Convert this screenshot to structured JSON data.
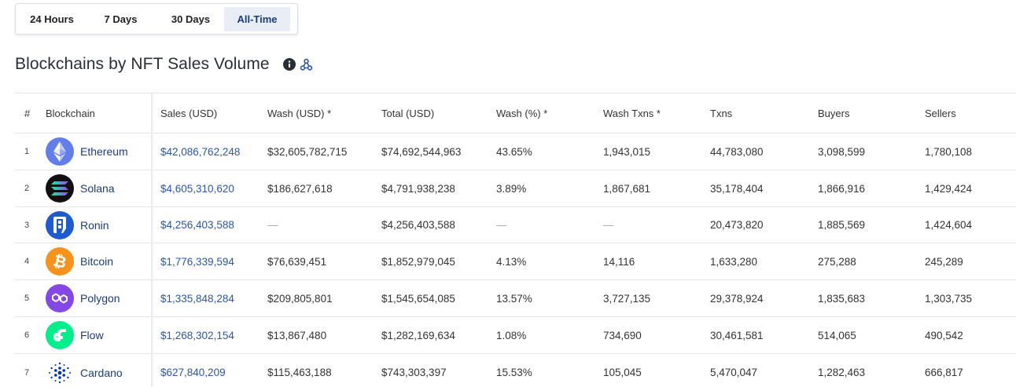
{
  "time_tabs": [
    {
      "label": "24 Hours",
      "active": false
    },
    {
      "label": "7 Days",
      "active": false
    },
    {
      "label": "30 Days",
      "active": false
    },
    {
      "label": "All-Time",
      "active": true
    }
  ],
  "title": "Blockchains by NFT Sales Volume",
  "icons": {
    "info": "info-icon",
    "share": "share-icon"
  },
  "table": {
    "headers": {
      "rank": "#",
      "blockchain": "Blockchain",
      "sales": "Sales (USD)",
      "wash": "Wash (USD) *",
      "total": "Total (USD)",
      "wash_pct": "Wash (%) *",
      "wash_txns": "Wash Txns *",
      "txns": "Txns",
      "buyers": "Buyers",
      "sellers": "Sellers"
    },
    "rows": [
      {
        "rank": "1",
        "name": "Ethereum",
        "icon": "ethereum-icon",
        "sales": "$42,086,762,248",
        "wash": "$32,605,782,715",
        "total": "$74,692,544,963",
        "wash_pct": "43.65%",
        "wash_txns": "1,943,015",
        "txns": "44,783,080",
        "buyers": "3,098,599",
        "sellers": "1,780,108"
      },
      {
        "rank": "2",
        "name": "Solana",
        "icon": "solana-icon",
        "sales": "$4,605,310,620",
        "wash": "$186,627,618",
        "total": "$4,791,938,238",
        "wash_pct": "3.89%",
        "wash_txns": "1,867,681",
        "txns": "35,178,404",
        "buyers": "1,866,916",
        "sellers": "1,429,424"
      },
      {
        "rank": "3",
        "name": "Ronin",
        "icon": "ronin-icon",
        "sales": "$4,256,403,588",
        "wash": "—",
        "total": "$4,256,403,588",
        "wash_pct": "—",
        "wash_txns": "—",
        "txns": "20,473,820",
        "buyers": "1,885,569",
        "sellers": "1,424,604"
      },
      {
        "rank": "4",
        "name": "Bitcoin",
        "icon": "bitcoin-icon",
        "sales": "$1,776,339,594",
        "wash": "$76,639,451",
        "total": "$1,852,979,045",
        "wash_pct": "4.13%",
        "wash_txns": "14,116",
        "txns": "1,633,280",
        "buyers": "275,288",
        "sellers": "245,289"
      },
      {
        "rank": "5",
        "name": "Polygon",
        "icon": "polygon-icon",
        "sales": "$1,335,848,284",
        "wash": "$209,805,801",
        "total": "$1,545,654,085",
        "wash_pct": "13.57%",
        "wash_txns": "3,727,135",
        "txns": "29,378,924",
        "buyers": "1,835,683",
        "sellers": "1,303,735"
      },
      {
        "rank": "6",
        "name": "Flow",
        "icon": "flow-icon",
        "sales": "$1,268,302,154",
        "wash": "$13,867,480",
        "total": "$1,282,169,634",
        "wash_pct": "1.08%",
        "wash_txns": "734,690",
        "txns": "30,461,581",
        "buyers": "514,065",
        "sellers": "490,542"
      },
      {
        "rank": "7",
        "name": "Cardano",
        "icon": "cardano-icon",
        "sales": "$627,840,209",
        "wash": "$115,463,188",
        "total": "$743,303,397",
        "wash_pct": "15.53%",
        "wash_txns": "105,045",
        "txns": "5,470,047",
        "buyers": "1,282,463",
        "sellers": "666,817"
      }
    ]
  },
  "colors": {
    "link": "#2b57a5",
    "chain_name": "#1c3d7a",
    "active_tab_bg": "#e8edf6",
    "ethereum": "#627eea",
    "solana": "#111111",
    "ronin": "#1f5bd0",
    "bitcoin": "#f7931a",
    "polygon": "#8247e5",
    "flow": "#00ef8b",
    "cardano": "#0033ad"
  }
}
